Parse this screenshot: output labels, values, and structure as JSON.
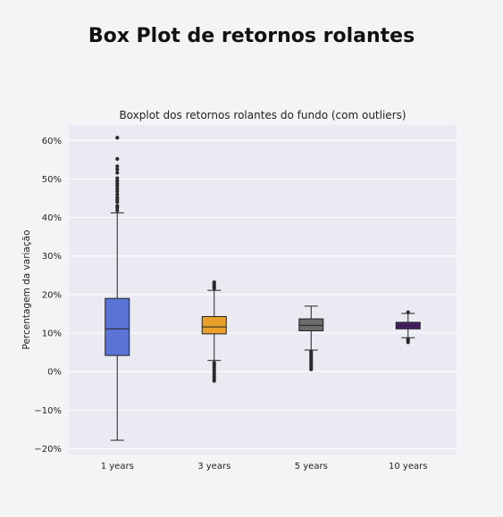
{
  "page": {
    "title": "Box Plot de retornos rolantes"
  },
  "chart_data": {
    "type": "box",
    "title": "Boxplot dos retornos rolantes do fundo (com outliers)",
    "xlabel": "",
    "ylabel": "Percentagem da variação",
    "ylim": [
      -21.5,
      64
    ],
    "yticks": [
      -20,
      -10,
      0,
      10,
      20,
      30,
      40,
      50,
      60
    ],
    "ytick_labels": [
      "−20%",
      "−10%",
      "0%",
      "10%",
      "20%",
      "30%",
      "40%",
      "50%",
      "60%"
    ],
    "grid": true,
    "categories": [
      "1 years",
      "3 years",
      "5 years",
      "10 years"
    ],
    "series": [
      {
        "category": "1 years",
        "color": "#5a74d6",
        "whisker_low": -17.8,
        "q1": 4.2,
        "median": 11.1,
        "q3": 19.0,
        "whisker_high": 41.2,
        "outliers_low": [],
        "outliers_high": [
          41.8,
          42.5,
          43.0,
          44.0,
          44.6,
          45.2,
          46.0,
          46.8,
          47.5,
          48.2,
          48.8,
          49.5,
          50.2,
          51.6,
          52.5,
          53.3,
          55.2,
          60.7
        ]
      },
      {
        "category": "3 years",
        "color": "#e8a02a",
        "whisker_low": 2.9,
        "q1": 9.8,
        "median": 11.6,
        "q3": 14.3,
        "whisker_high": 21.1,
        "outliers_low": [
          -2.4,
          -1.8,
          -1.2,
          -0.6,
          0.0,
          0.6,
          1.2,
          1.8,
          2.3
        ],
        "outliers_high": [
          21.6,
          22.0,
          22.4,
          22.8,
          23.2
        ]
      },
      {
        "category": "5 years",
        "color": "#6b6b6b",
        "whisker_low": 5.6,
        "q1": 10.6,
        "median": 12.0,
        "q3": 13.7,
        "whisker_high": 17.0,
        "outliers_low": [
          0.6,
          1.1,
          1.6,
          2.2,
          2.7,
          3.2,
          3.7,
          4.2,
          4.7,
          5.2
        ],
        "outliers_high": []
      },
      {
        "category": "10 years",
        "color": "#4b1d6e",
        "whisker_low": 8.8,
        "q1": 11.1,
        "median": 11.9,
        "q3": 12.8,
        "whisker_high": 15.1,
        "outliers_low": [
          7.6,
          8.0,
          8.4
        ],
        "outliers_high": [
          15.4
        ]
      }
    ]
  }
}
